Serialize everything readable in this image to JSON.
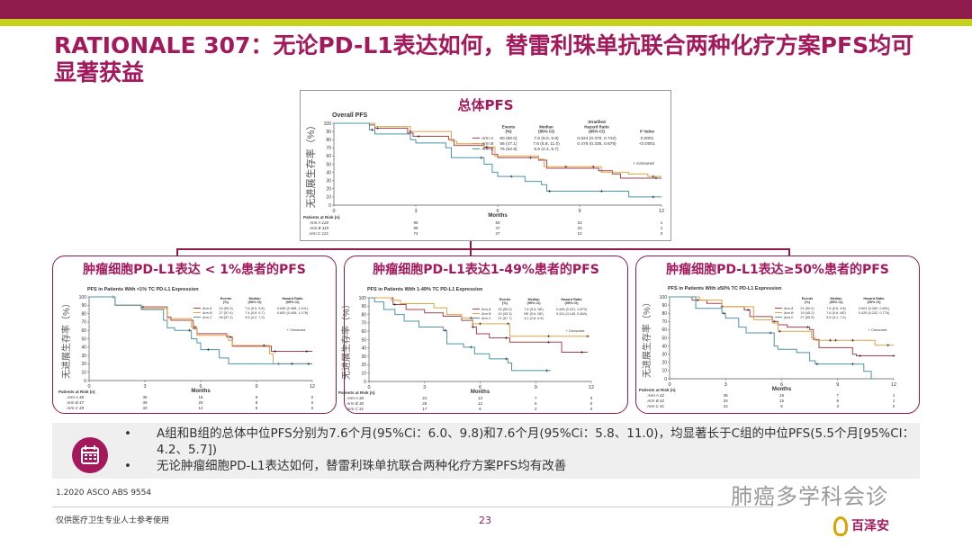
{
  "header": {
    "title": "RATIONALE 307：无论PD-L1表达如何，替雷利珠单抗联合两种化疗方案PFS均可显著获益"
  },
  "main_title": "总体PFS",
  "panels": [
    "肿瘤细胞PD-L1表达 < 1%患者的PFS",
    "肿瘤细胞PD-L1表达1-49%患者的PFS",
    "肿瘤细胞PD-L1表达≥50%患者的PFS"
  ],
  "colors": {
    "arm_a": "#a8424c",
    "arm_b": "#e3a446",
    "arm_c": "#4c95ad",
    "accent": "#a3195b"
  },
  "chart_data": [
    {
      "type": "line",
      "title": "Overall PFS",
      "xlabel": "Months",
      "ylabel": "无进展生存率（%）",
      "xlim": [
        0,
        12
      ],
      "ylim": [
        0,
        100
      ],
      "xticks": [
        0,
        3,
        6,
        9,
        12
      ],
      "yticks": [
        0,
        10,
        20,
        30,
        40,
        50,
        60,
        70,
        80,
        90,
        100
      ],
      "legend_headers": [
        "Events (%)",
        "Median (95% CI)",
        "Stratified Hazard Ratio (95% CI)",
        "P Value"
      ],
      "censored_label": "+ Censored",
      "risk_header": "Patients at Risk (n)",
      "series": [
        {
          "name": "Arm A",
          "events": "60 (50.0)",
          "median": "7.6 (6.0, 9.8)",
          "hr": "0.524 (0.370, 0.742)",
          "p": "0.0001",
          "risk": [
            120,
            95,
            50,
            23,
            1
          ],
          "steps": [
            [
              0,
              100
            ],
            [
              1.3,
              98
            ],
            [
              1.5,
              94
            ],
            [
              2.7,
              88
            ],
            [
              2.9,
              84
            ],
            [
              4.2,
              80
            ],
            [
              4.4,
              73
            ],
            [
              5.5,
              70
            ],
            [
              5.8,
              62
            ],
            [
              6,
              58
            ],
            [
              7.5,
              55
            ],
            [
              7.8,
              45
            ],
            [
              9.7,
              42
            ],
            [
              10.2,
              38
            ],
            [
              10.5,
              33
            ],
            [
              12,
              33
            ]
          ],
          "censor": [
            1.6,
            3.1,
            7.2,
            9.8,
            11.8
          ]
        },
        {
          "name": "Arm B",
          "events": "56 (47.1)",
          "median": "7.6 (5.8, 11.0)",
          "hr": "0.478 (0.336, 0.679)",
          "p": "<0.0001",
          "risk": [
            119,
            98,
            47,
            23,
            1
          ],
          "steps": [
            [
              0,
              100
            ],
            [
              1.5,
              96
            ],
            [
              2.8,
              90
            ],
            [
              4.3,
              78
            ],
            [
              4.5,
              75
            ],
            [
              5.5,
              71
            ],
            [
              5.9,
              60
            ],
            [
              7.5,
              56
            ],
            [
              7.7,
              47
            ],
            [
              9.8,
              40
            ],
            [
              10.8,
              38
            ],
            [
              11.5,
              35
            ],
            [
              12,
              35
            ]
          ],
          "censor": [
            2.8,
            5.6,
            8.5,
            9.5,
            11.7
          ]
        },
        {
          "name": "Arm C",
          "events": "76 (62.8)",
          "median": "5.5 (4.2, 5.7)",
          "hr": "",
          "p": "",
          "risk": [
            121,
            74,
            27,
            10,
            0
          ],
          "steps": [
            [
              0,
              100
            ],
            [
              1.3,
              92
            ],
            [
              1.5,
              87
            ],
            [
              2.8,
              80
            ],
            [
              3,
              76
            ],
            [
              4.1,
              70
            ],
            [
              4.3,
              58
            ],
            [
              5.5,
              50
            ],
            [
              5.8,
              40
            ],
            [
              6,
              35
            ],
            [
              7,
              29
            ],
            [
              7.6,
              25
            ],
            [
              7.8,
              17
            ],
            [
              10.8,
              10
            ],
            [
              12,
              10
            ]
          ],
          "censor": [
            1.4,
            5.4,
            6.5,
            7.9,
            9.8,
            11.7
          ]
        }
      ]
    },
    {
      "type": "line",
      "title": "PFS in Patients With <1% TC PD-L1 Expression",
      "xlabel": "Months",
      "ylabel": "无进展生存率（%）",
      "xlim": [
        0,
        12
      ],
      "ylim": [
        0,
        100
      ],
      "xticks": [
        0,
        3,
        6,
        9,
        12
      ],
      "yticks": [
        0,
        10,
        20,
        30,
        40,
        50,
        60,
        70,
        80,
        90,
        100
      ],
      "legend_headers": [
        "Events (%)",
        "Median (95% CI)",
        "Hazard Ratio (95% CI)"
      ],
      "censored_label": "+ Censored",
      "risk_header": "Patients at Risk (n)",
      "series": [
        {
          "name": "Arm A",
          "events": "24 (50.0)",
          "median": "7.6 (5.5, 9.8)",
          "hr": "0.636 (0.368, 1.101)",
          "risk": [
            48,
            36,
            18,
            9,
            0
          ],
          "steps": [
            [
              0,
              100
            ],
            [
              1.4,
              90
            ],
            [
              2.8,
              88
            ],
            [
              4.2,
              76
            ],
            [
              4.4,
              72
            ],
            [
              5.6,
              62
            ],
            [
              5.8,
              56
            ],
            [
              7.4,
              52
            ],
            [
              7.7,
              41
            ],
            [
              9.8,
              35
            ],
            [
              12,
              35
            ]
          ],
          "censor": [
            1.3,
            2.9,
            7.6,
            10,
            11.7
          ]
        },
        {
          "name": "Arm B",
          "events": "27 (57.4)",
          "median": "7.4 (5.6, 9.7)",
          "hr": "0.692 (0.406, 1.178)",
          "risk": [
            47,
            39,
            20,
            8,
            0
          ],
          "steps": [
            [
              0,
              100
            ],
            [
              1.4,
              90
            ],
            [
              2.8,
              86
            ],
            [
              4.2,
              74
            ],
            [
              5.5,
              64
            ],
            [
              5.8,
              54
            ],
            [
              7.5,
              48
            ],
            [
              7.7,
              42
            ],
            [
              9.7,
              32
            ],
            [
              9.9,
              20
            ],
            [
              12,
              20
            ]
          ],
          "censor": [
            5.7,
            9.4,
            10.2
          ]
        },
        {
          "name": "Arm C",
          "events": "28 (57.1)",
          "median": "5.5 (4.2, 7.0)",
          "hr": "",
          "risk": [
            49,
            33,
            12,
            5,
            0
          ],
          "steps": [
            [
              0,
              100
            ],
            [
              1.4,
              90
            ],
            [
              2.8,
              85
            ],
            [
              4,
              72
            ],
            [
              4.2,
              63
            ],
            [
              4.6,
              60
            ],
            [
              5.5,
              50
            ],
            [
              5.8,
              45
            ],
            [
              6,
              37
            ],
            [
              7,
              27
            ],
            [
              7.5,
              20
            ],
            [
              12,
              20
            ]
          ],
          "censor": [
            5.4,
            6.4,
            10.9,
            11.8
          ]
        }
      ]
    },
    {
      "type": "line",
      "title": "PFS in Patients With 1-49% TC PD-L1 Expression",
      "xlabel": "Months",
      "ylabel": "无进展生存率（%）",
      "xlim": [
        0,
        12
      ],
      "ylim": [
        0,
        100
      ],
      "xticks": [
        0,
        3,
        6,
        9,
        12
      ],
      "yticks": [
        0,
        10,
        20,
        30,
        40,
        50,
        60,
        70,
        80,
        90,
        100
      ],
      "legend_headers": [
        "Events (%)",
        "Median (95% CI)",
        "Hazard Ratio (95% CI)"
      ],
      "censored_label": "+ Censored",
      "risk_header": "Patients at Risk (n)",
      "series": [
        {
          "name": "Arm A",
          "events": "15 (50.0)",
          "median": "7.6 (5.5, NE)",
          "hr": "0.439 (0.221, 0.870)",
          "risk": [
            30,
            24,
            13,
            7,
            0
          ],
          "steps": [
            [
              0,
              100
            ],
            [
              1.3,
              92
            ],
            [
              2,
              86
            ],
            [
              3,
              82
            ],
            [
              4,
              78
            ],
            [
              5,
              73
            ],
            [
              5.6,
              65
            ],
            [
              5.8,
              57
            ],
            [
              6.5,
              52
            ],
            [
              7.6,
              47
            ],
            [
              10.4,
              35
            ],
            [
              11.8,
              35
            ]
          ],
          "censor": [
            1.4,
            5.6,
            7.4,
            9.7,
            11.5
          ]
        },
        {
          "name": "Arm B",
          "events": "10 (33.3)",
          "median": "NE (5.6, NE)",
          "hr": "0.311 (0.145, 0.664)",
          "risk": [
            30,
            25,
            12,
            6,
            0
          ],
          "steps": [
            [
              0,
              100
            ],
            [
              1.2,
              97
            ],
            [
              1.7,
              93
            ],
            [
              3.5,
              88
            ],
            [
              4.2,
              80
            ],
            [
              5,
              76
            ],
            [
              5.6,
              69
            ],
            [
              7.6,
              54
            ],
            [
              11.9,
              54
            ]
          ],
          "censor": [
            5.5,
            6,
            7.5,
            9.7,
            11.8
          ]
        },
        {
          "name": "Arm C",
          "events": "21 (67.7)",
          "median": "4.2 (2.8, 6.5)",
          "hr": "",
          "risk": [
            31,
            17,
            6,
            2,
            0
          ],
          "steps": [
            [
              0,
              100
            ],
            [
              0.3,
              95
            ],
            [
              0.8,
              86
            ],
            [
              1.4,
              80
            ],
            [
              1.9,
              72
            ],
            [
              2.7,
              65
            ],
            [
              4,
              61
            ],
            [
              4.2,
              45
            ],
            [
              5.1,
              41
            ],
            [
              5.7,
              33
            ],
            [
              6.5,
              27
            ],
            [
              7.5,
              22
            ],
            [
              7.7,
              13
            ],
            [
              9.8,
              13
            ]
          ],
          "censor": [
            4.1,
            5.5,
            7.4,
            9.6
          ]
        }
      ]
    },
    {
      "type": "line",
      "title": "PFS in Patients With ≥50% TC PD-L1 Expression",
      "xlabel": "Months",
      "ylabel": "无进展生存率（%）",
      "xlim": [
        0,
        12
      ],
      "ylim": [
        0,
        100
      ],
      "xticks": [
        0,
        3,
        6,
        9,
        12
      ],
      "yticks": [
        0,
        10,
        20,
        30,
        40,
        50,
        60,
        70,
        80,
        90,
        100
      ],
      "legend_headers": [
        "Events (%)",
        "Median (95% CI)",
        "Hazard Ratio (95% CI)"
      ],
      "censored_label": "+ Censored",
      "risk_header": "Patients at Risk (n)",
      "series": [
        {
          "name": "Arm A",
          "events": "21 (50.0)",
          "median": "7.6 (5.6, 9.8)",
          "hr": "0.501 (0.282, 0.891)",
          "risk": [
            42,
            35,
            19,
            7,
            1
          ],
          "steps": [
            [
              0,
              100
            ],
            [
              1.2,
              96
            ],
            [
              2,
              92
            ],
            [
              2.8,
              88
            ],
            [
              4,
              84
            ],
            [
              4.3,
              76
            ],
            [
              5.5,
              70
            ],
            [
              5.8,
              66
            ],
            [
              6.3,
              63
            ],
            [
              7.5,
              60
            ],
            [
              7.7,
              48
            ],
            [
              8,
              38
            ],
            [
              9.8,
              30
            ],
            [
              10,
              28
            ],
            [
              12,
              28
            ]
          ],
          "censor": [
            1.5,
            4.2,
            5.6,
            7.4,
            10.2,
            12
          ]
        },
        {
          "name": "Arm B",
          "events": "19 (45.2)",
          "median": "7.6 (5.6, NE)",
          "hr": "0.425 (0.232, 0.776)",
          "risk": [
            42,
            34,
            15,
            9,
            1
          ],
          "steps": [
            [
              0,
              100
            ],
            [
              1.6,
              96
            ],
            [
              2.8,
              88
            ],
            [
              4.5,
              72
            ],
            [
              5.5,
              68
            ],
            [
              5.8,
              58
            ],
            [
              7.6,
              50
            ],
            [
              7.8,
              47
            ],
            [
              11,
              41
            ],
            [
              12,
              41
            ]
          ],
          "censor": [
            2.8,
            5.9,
            8.6,
            8.9,
            9.8,
            11.7
          ]
        },
        {
          "name": "Arm C",
          "events": "27 (65.9)",
          "median": "5.5 (4.1, 7.0)",
          "hr": "",
          "risk": [
            41,
            24,
            9,
            3,
            0
          ],
          "steps": [
            [
              0,
              100
            ],
            [
              1.4,
              86
            ],
            [
              2.8,
              80
            ],
            [
              3,
              74
            ],
            [
              3.7,
              63
            ],
            [
              4.1,
              56
            ],
            [
              5.6,
              40
            ],
            [
              5.8,
              36
            ],
            [
              6.8,
              32
            ],
            [
              7.5,
              22
            ],
            [
              7.8,
              18
            ],
            [
              10.4,
              9
            ],
            [
              10.8,
              0
            ]
          ],
          "censor": [
            2.9,
            5.4,
            7.9,
            9.8
          ]
        }
      ]
    }
  ],
  "notes": [
    "A组和B组的总体中位PFS分别为7.6个月(95%Ci：6.0、9.8)和7.6个月(95%Ci：5.8、11.0)，均显著长于C组的中位PFS(5.5个月[95%CI：4.2、5.7])",
    "无论肿瘤细胞PD-L1表达如何，替雷利珠单抗联合两种化疗方案PFS均有改善"
  ],
  "reference": "1.2020 ASCO ABS 9554",
  "footer": "仅供医疗卫生专业人士参考使用",
  "page_number": "23",
  "watermark": "肺癌多学科会诊",
  "logo": "百泽安"
}
